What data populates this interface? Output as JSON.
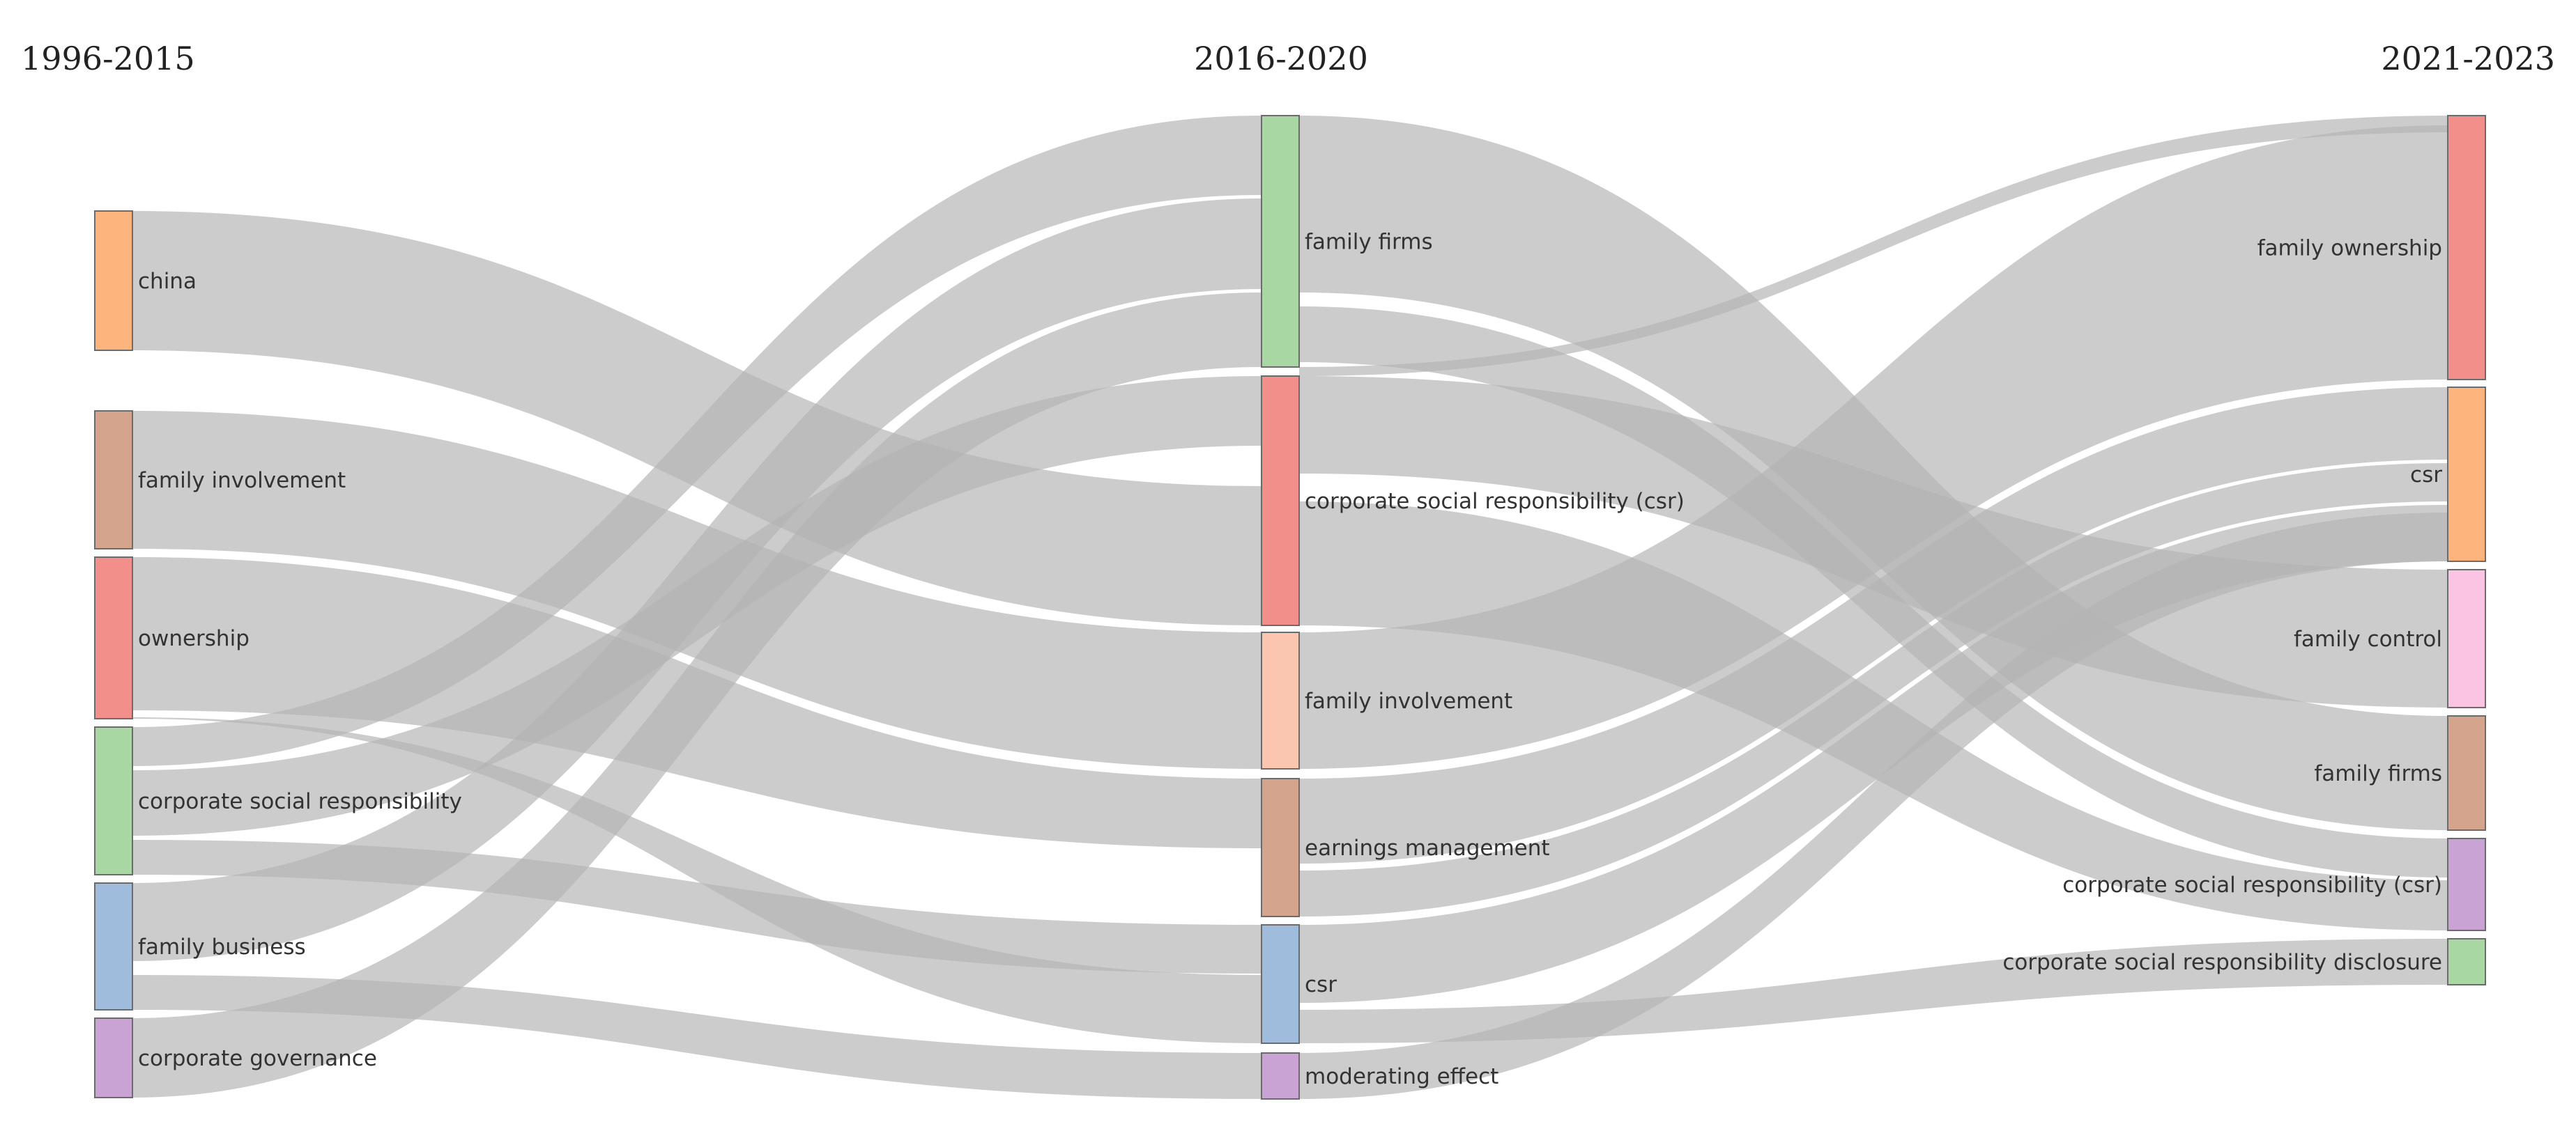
{
  "periods": [
    "1996-2015",
    "2016-2020",
    "2021-2023"
  ],
  "columns": [
    {
      "nodes": [
        {
          "id": "c0-china",
          "label": "china",
          "color": "#FDB47D"
        },
        {
          "id": "c0-family-involvement",
          "label": "family involvement",
          "color": "#D4A48C"
        },
        {
          "id": "c0-ownership",
          "label": "ownership",
          "color": "#F28F8B"
        },
        {
          "id": "c0-corporate-social-responsibility",
          "label": "corporate social responsibility",
          "color": "#A8D7A3"
        },
        {
          "id": "c0-family-business",
          "label": "family business",
          "color": "#A0BCDD"
        },
        {
          "id": "c0-corporate-governance",
          "label": "corporate governance",
          "color": "#C9A3D4"
        }
      ]
    },
    {
      "nodes": [
        {
          "id": "c1-family-firms",
          "label": "family firms",
          "color": "#A8D7A3"
        },
        {
          "id": "c1-csr-full",
          "label": "corporate social responsibility (csr)",
          "color": "#F28F8B"
        },
        {
          "id": "c1-family-involvement",
          "label": "family involvement",
          "color": "#FBC6B0"
        },
        {
          "id": "c1-earnings-management",
          "label": "earnings management",
          "color": "#D4A48C"
        },
        {
          "id": "c1-csr",
          "label": "csr",
          "color": "#A0BCDD"
        },
        {
          "id": "c1-moderating-effect",
          "label": "moderating effect",
          "color": "#C9A3D4"
        }
      ]
    },
    {
      "nodes": [
        {
          "id": "c2-family-ownership",
          "label": "family ownership",
          "color": "#F28F8B"
        },
        {
          "id": "c2-csr",
          "label": "csr",
          "color": "#FDB47D"
        },
        {
          "id": "c2-family-control",
          "label": "family control",
          "color": "#FBC4E2"
        },
        {
          "id": "c2-family-firms",
          "label": "family firms",
          "color": "#D4A48C"
        },
        {
          "id": "c2-csr-full",
          "label": "corporate social responsibility (csr)",
          "color": "#C9A3D4"
        },
        {
          "id": "c2-csr-disclosure",
          "label": "corporate social responsibility disclosure",
          "color": "#A8D7A3"
        }
      ]
    }
  ],
  "links": [
    {
      "source": "c0-china",
      "target": "c1-csr-full"
    },
    {
      "source": "c0-family-involvement",
      "target": "c1-family-involvement"
    },
    {
      "source": "c0-ownership",
      "target": "c1-earnings-management"
    },
    {
      "source": "c0-ownership",
      "target": "c1-csr"
    },
    {
      "source": "c0-corporate-social-responsibility",
      "target": "c1-family-firms"
    },
    {
      "source": "c0-corporate-social-responsibility",
      "target": "c1-csr-full"
    },
    {
      "source": "c0-corporate-social-responsibility",
      "target": "c1-csr"
    },
    {
      "source": "c0-family-business",
      "target": "c1-family-firms"
    },
    {
      "source": "c0-family-business",
      "target": "c1-moderating-effect"
    },
    {
      "source": "c0-corporate-governance",
      "target": "c1-family-firms"
    },
    {
      "source": "c1-family-firms",
      "target": "c2-family-ownership"
    },
    {
      "source": "c1-family-firms",
      "target": "c2-family-firms"
    },
    {
      "source": "c1-family-firms",
      "target": "c2-csr-full"
    },
    {
      "source": "c1-csr-full",
      "target": "c2-family-control"
    },
    {
      "source": "c1-csr-full",
      "target": "c2-csr-full"
    },
    {
      "source": "c1-family-involvement",
      "target": "c2-family-ownership"
    },
    {
      "source": "c1-earnings-management",
      "target": "c2-family-ownership"
    },
    {
      "source": "c1-earnings-management",
      "target": "c2-csr"
    },
    {
      "source": "c1-csr",
      "target": "c2-csr"
    },
    {
      "source": "c1-csr",
      "target": "c2-csr-disclosure"
    },
    {
      "source": "c1-moderating-effect",
      "target": "c2-csr"
    }
  ]
}
